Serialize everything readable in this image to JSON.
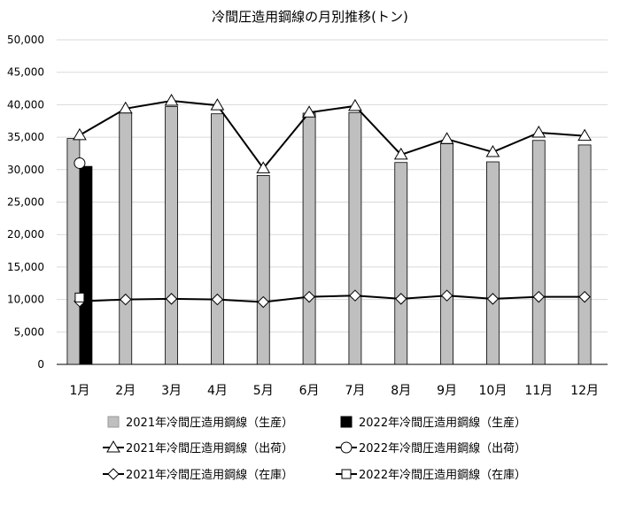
{
  "chart_data": {
    "type": "bar",
    "title": "冷間圧造用鋼線の月別推移(トン)",
    "categories": [
      "1月",
      "2月",
      "3月",
      "4月",
      "5月",
      "6月",
      "7月",
      "8月",
      "9月",
      "10月",
      "11月",
      "12月"
    ],
    "ylim": [
      0,
      50000
    ],
    "yticks": [
      0,
      5000,
      10000,
      15000,
      20000,
      25000,
      30000,
      35000,
      40000,
      45000,
      50000
    ],
    "ytick_labels": [
      "0",
      "5,000",
      "10,000",
      "15,000",
      "20,000",
      "25,000",
      "30,000",
      "35,000",
      "40,000",
      "45,000",
      "50,000"
    ],
    "grid": true,
    "legend_position": "bottom",
    "series": [
      {
        "name": "2021年冷間圧造用鋼線（生産）",
        "kind": "bar",
        "color": "#bfbfbf",
        "values": [
          34800,
          38800,
          39700,
          38600,
          29100,
          38700,
          38800,
          31100,
          34000,
          31200,
          34500,
          33800
        ]
      },
      {
        "name": "2022年冷間圧造用鋼線（生産）",
        "kind": "bar",
        "color": "#000000",
        "values": [
          30500,
          null,
          null,
          null,
          null,
          null,
          null,
          null,
          null,
          null,
          null,
          null
        ]
      },
      {
        "name": "2021年冷間圧造用鋼線（出荷）",
        "kind": "line",
        "marker": "triangle",
        "values": [
          35300,
          39400,
          40600,
          39900,
          30200,
          38800,
          39800,
          32300,
          34700,
          32700,
          35700,
          35200
        ]
      },
      {
        "name": "2022年冷間圧造用鋼線（出荷）",
        "kind": "line",
        "marker": "circle",
        "values": [
          31000,
          null,
          null,
          null,
          null,
          null,
          null,
          null,
          null,
          null,
          null,
          null
        ]
      },
      {
        "name": "2021年冷間圧造用鋼線（在庫）",
        "kind": "line",
        "marker": "diamond",
        "values": [
          9700,
          10000,
          10100,
          10000,
          9600,
          10400,
          10600,
          10100,
          10600,
          10100,
          10400,
          10400
        ]
      },
      {
        "name": "2022年冷間圧造用鋼線（在庫）",
        "kind": "line",
        "marker": "square",
        "values": [
          10300,
          null,
          null,
          null,
          null,
          null,
          null,
          null,
          null,
          null,
          null,
          null
        ]
      }
    ]
  }
}
